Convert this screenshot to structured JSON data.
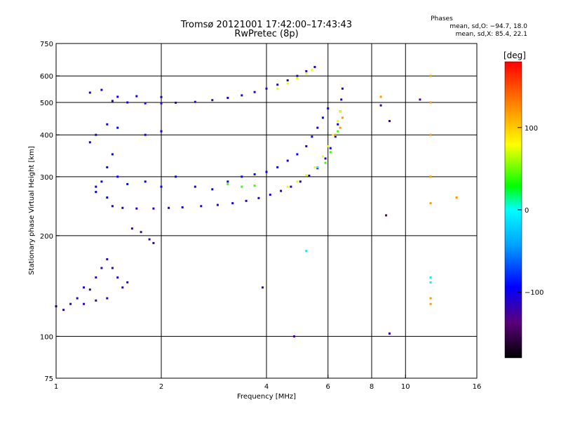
{
  "header": {
    "title": "Tromsø 20121001 17:42:00–17:43:43",
    "subtitle": "RwPretec (8p)",
    "phase_heading": "Phases",
    "phase_o": "mean, sd,O: −94.7, 18.0",
    "phase_x": "mean, sd,X:  85.4, 22.1"
  },
  "colorbar": {
    "label": "[deg]",
    "ticks": [
      {
        "value": 100,
        "label": "100"
      },
      {
        "value": 0,
        "label": "0"
      },
      {
        "value": -100,
        "label": "−100"
      }
    ],
    "range": [
      -180,
      180
    ]
  },
  "chart_data": {
    "type": "scatter",
    "title": "Tromsø 20121001 17:42:00–17:43:43",
    "subtitle": "RwPretec (8p)",
    "xlabel": "Frequency [MHz]",
    "ylabel": "Stationary phase Virtual Height [km]",
    "xscale": "log",
    "yscale": "log",
    "xlim": [
      1,
      16
    ],
    "ylim": [
      75,
      750
    ],
    "xticks": [
      {
        "value": 1,
        "label": "1"
      },
      {
        "value": 2,
        "label": "2"
      },
      {
        "value": 4,
        "label": "4"
      },
      {
        "value": 6,
        "label": "6"
      },
      {
        "value": 8,
        "label": "8"
      },
      {
        "value": 10,
        "label": "10"
      },
      {
        "value": 16,
        "label": "16"
      }
    ],
    "yticks": [
      {
        "value": 75,
        "label": "75"
      },
      {
        "value": 100,
        "label": "100"
      },
      {
        "value": 200,
        "label": "200"
      },
      {
        "value": 300,
        "label": "300"
      },
      {
        "value": 400,
        "label": "400"
      },
      {
        "value": 500,
        "label": "500"
      },
      {
        "value": 600,
        "label": "600"
      },
      {
        "value": 750,
        "label": "750"
      }
    ],
    "xgrid": [
      2,
      4,
      6,
      8,
      10
    ],
    "ygrid": [
      100,
      200,
      300,
      400,
      500,
      600
    ],
    "color_encoding": "phase [deg]",
    "trace_groups": [
      {
        "phase": -105,
        "points": [
          [
            1.45,
            245
          ],
          [
            1.55,
            242
          ],
          [
            1.7,
            241
          ],
          [
            1.9,
            241
          ],
          [
            2.1,
            242
          ],
          [
            2.3,
            243
          ],
          [
            2.6,
            245
          ],
          [
            2.9,
            247
          ],
          [
            3.2,
            250
          ],
          [
            3.5,
            254
          ],
          [
            3.8,
            259
          ],
          [
            4.1,
            265
          ],
          [
            4.4,
            272
          ],
          [
            4.7,
            280
          ],
          [
            5.0,
            290
          ],
          [
            5.3,
            302
          ],
          [
            5.6,
            318
          ],
          [
            5.9,
            340
          ],
          [
            6.1,
            365
          ],
          [
            6.3,
            395
          ],
          [
            6.4,
            430
          ],
          [
            6.5,
            470
          ],
          [
            6.55,
            510
          ],
          [
            6.6,
            550
          ]
        ]
      },
      {
        "phase": -95,
        "points": [
          [
            1.3,
            270
          ],
          [
            1.35,
            290
          ],
          [
            1.4,
            320
          ],
          [
            1.45,
            350
          ],
          [
            1.5,
            300
          ],
          [
            1.4,
            260
          ],
          [
            1.3,
            280
          ],
          [
            1.6,
            285
          ],
          [
            1.8,
            290
          ],
          [
            2.0,
            280
          ],
          [
            2.2,
            300
          ],
          [
            2.5,
            280
          ],
          [
            2.8,
            275
          ],
          [
            3.1,
            290
          ],
          [
            3.4,
            300
          ],
          [
            3.7,
            305
          ],
          [
            4.0,
            310
          ],
          [
            4.3,
            320
          ],
          [
            4.6,
            335
          ],
          [
            4.9,
            350
          ],
          [
            5.2,
            370
          ],
          [
            5.4,
            395
          ],
          [
            5.6,
            420
          ],
          [
            5.8,
            450
          ],
          [
            6.0,
            480
          ]
        ]
      },
      {
        "phase": -110,
        "points": [
          [
            1.45,
            505
          ],
          [
            1.6,
            500
          ],
          [
            1.8,
            497
          ],
          [
            2.0,
            497
          ],
          [
            2.2,
            499
          ],
          [
            2.5,
            502
          ],
          [
            2.8,
            508
          ],
          [
            3.1,
            516
          ],
          [
            3.4,
            525
          ],
          [
            3.7,
            537
          ],
          [
            4.0,
            550
          ],
          [
            4.3,
            565
          ],
          [
            4.6,
            582
          ],
          [
            4.9,
            600
          ],
          [
            5.2,
            620
          ],
          [
            5.5,
            638
          ]
        ]
      },
      {
        "phase": -100,
        "points": [
          [
            1.5,
            520
          ],
          [
            1.7,
            522
          ],
          [
            2.0,
            519
          ],
          [
            1.25,
            535
          ],
          [
            1.35,
            545
          ],
          [
            1.25,
            380
          ],
          [
            1.3,
            400
          ],
          [
            1.4,
            430
          ],
          [
            1.5,
            420
          ],
          [
            1.8,
            400
          ],
          [
            2.0,
            410
          ]
        ]
      },
      {
        "phase": -115,
        "points": [
          [
            1.0,
            123
          ],
          [
            1.05,
            120
          ],
          [
            1.1,
            125
          ],
          [
            1.15,
            130
          ],
          [
            1.2,
            140
          ],
          [
            1.25,
            138
          ],
          [
            1.3,
            150
          ],
          [
            1.35,
            160
          ],
          [
            1.4,
            170
          ],
          [
            1.45,
            160
          ],
          [
            1.5,
            150
          ],
          [
            1.55,
            140
          ],
          [
            1.6,
            145
          ],
          [
            1.2,
            125
          ],
          [
            1.3,
            128
          ],
          [
            1.4,
            130
          ]
        ]
      },
      {
        "phase": -120,
        "points": [
          [
            1.75,
            205
          ],
          [
            1.85,
            195
          ],
          [
            1.9,
            190
          ],
          [
            1.65,
            210
          ]
        ]
      },
      {
        "phase": 75,
        "points": [
          [
            4.6,
            280
          ],
          [
            4.9,
            290
          ],
          [
            5.2,
            303
          ],
          [
            5.5,
            320
          ],
          [
            5.8,
            345
          ],
          [
            6.0,
            370
          ],
          [
            6.2,
            400
          ],
          [
            6.4,
            440
          ],
          [
            6.5,
            470
          ],
          [
            4.3,
            550
          ],
          [
            4.6,
            570
          ],
          [
            4.9,
            590
          ],
          [
            5.2,
            610
          ],
          [
            5.4,
            625
          ]
        ]
      },
      {
        "phase": 40,
        "points": [
          [
            3.1,
            285
          ],
          [
            3.4,
            280
          ],
          [
            3.7,
            282
          ],
          [
            5.9,
            330
          ],
          [
            6.1,
            355
          ],
          [
            6.4,
            410
          ]
        ]
      },
      {
        "phase": 120,
        "points": [
          [
            6.3,
            400
          ],
          [
            6.5,
            420
          ],
          [
            6.6,
            450
          ],
          [
            11.8,
            600
          ],
          [
            11.8,
            500
          ],
          [
            11.8,
            400
          ],
          [
            11.8,
            300
          ],
          [
            11.8,
            250
          ],
          [
            11.8,
            130
          ],
          [
            11.8,
            125
          ],
          [
            8.5,
            520
          ],
          [
            14,
            260
          ]
        ]
      },
      {
        "phase": -5,
        "points": [
          [
            11.8,
            150
          ],
          [
            11.8,
            145
          ],
          [
            5.2,
            180
          ],
          [
            5.6,
            320
          ]
        ]
      },
      {
        "phase": -125,
        "points": [
          [
            4.8,
            100
          ],
          [
            9,
            102
          ],
          [
            3.9,
            140
          ],
          [
            8.8,
            230
          ],
          [
            8.5,
            490
          ],
          [
            9,
            440
          ],
          [
            11,
            510
          ]
        ]
      }
    ]
  }
}
